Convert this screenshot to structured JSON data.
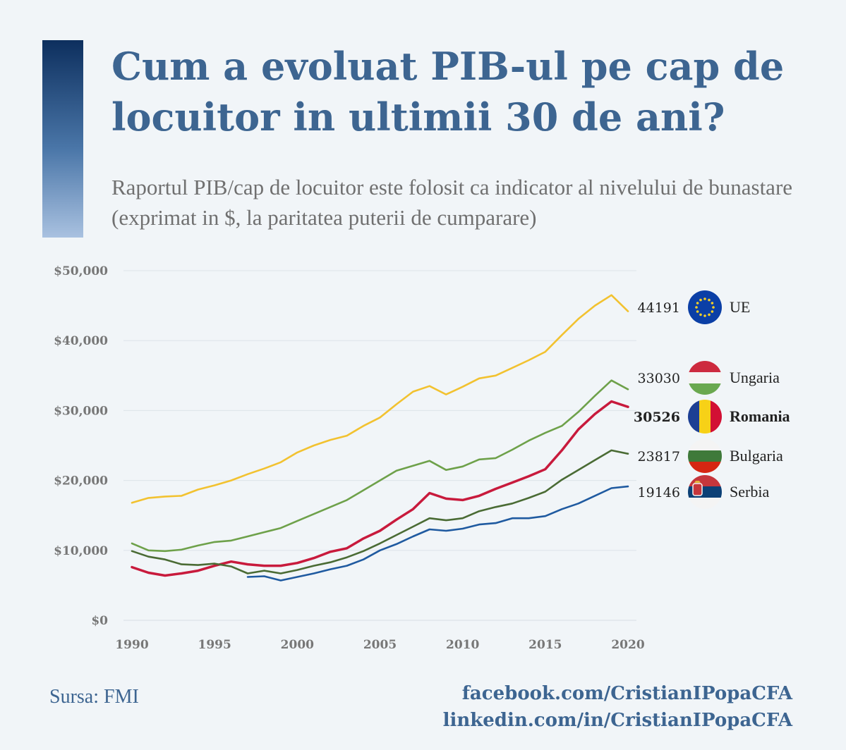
{
  "header": {
    "title": "Cum a evoluat PIB-ul pe cap de locuitor in ultimii 30 de ani?",
    "subtitle": "Raportul PIB/cap de locuitor este folosit ca indicator al nivelului de bunastare (exprimat in $, la paritatea puterii de cumparare)"
  },
  "chart_data": {
    "type": "line",
    "title": "Cum a evoluat PIB-ul pe cap de locuitor in ultimii 30 de ani?",
    "subtitle": "Raportul PIB/cap de locuitor este folosit ca indicator al nivelului de bunastare (exprimat in $, la paritatea puterii de cumparare)",
    "xlabel": "",
    "ylabel": "",
    "xlim": [
      1990,
      2020
    ],
    "ylim": [
      0,
      50000
    ],
    "x_ticks": [
      1990,
      1995,
      2000,
      2005,
      2010,
      2015,
      2020
    ],
    "y_ticks": [
      0,
      10000,
      20000,
      30000,
      40000,
      50000
    ],
    "y_tick_labels": [
      "$0",
      "$10,000",
      "$20,000",
      "$30,000",
      "$40,000",
      "$50,000"
    ],
    "grid": "horizontal",
    "legend_placement": "right",
    "series": [
      {
        "name": "UE",
        "color": "#f2c230",
        "icon": "eu-flag-icon",
        "end_label": "44191",
        "bold": false,
        "points": [
          [
            1990,
            16800
          ],
          [
            1991,
            17500
          ],
          [
            1992,
            17700
          ],
          [
            1993,
            17800
          ],
          [
            1994,
            18700
          ],
          [
            1995,
            19300
          ],
          [
            1996,
            20000
          ],
          [
            1997,
            20900
          ],
          [
            1998,
            21700
          ],
          [
            1999,
            22600
          ],
          [
            2000,
            24000
          ],
          [
            2001,
            25000
          ],
          [
            2002,
            25800
          ],
          [
            2003,
            26400
          ],
          [
            2004,
            27800
          ],
          [
            2005,
            29000
          ],
          [
            2006,
            30900
          ],
          [
            2007,
            32700
          ],
          [
            2008,
            33500
          ],
          [
            2009,
            32300
          ],
          [
            2010,
            33400
          ],
          [
            2011,
            34600
          ],
          [
            2012,
            35000
          ],
          [
            2013,
            36100
          ],
          [
            2014,
            37200
          ],
          [
            2015,
            38400
          ],
          [
            2016,
            40800
          ],
          [
            2017,
            43100
          ],
          [
            2018,
            45000
          ],
          [
            2019,
            46500
          ],
          [
            2020,
            44191
          ]
        ]
      },
      {
        "name": "Ungaria",
        "color": "#6ea14a",
        "icon": "hungary-flag-icon",
        "end_label": "33030",
        "bold": false,
        "points": [
          [
            1990,
            11000
          ],
          [
            1991,
            10000
          ],
          [
            1992,
            9900
          ],
          [
            1993,
            10100
          ],
          [
            1994,
            10700
          ],
          [
            1995,
            11200
          ],
          [
            1996,
            11400
          ],
          [
            1997,
            12000
          ],
          [
            1998,
            12600
          ],
          [
            1999,
            13200
          ],
          [
            2000,
            14200
          ],
          [
            2001,
            15200
          ],
          [
            2002,
            16200
          ],
          [
            2003,
            17200
          ],
          [
            2004,
            18600
          ],
          [
            2005,
            20000
          ],
          [
            2006,
            21400
          ],
          [
            2007,
            22100
          ],
          [
            2008,
            22800
          ],
          [
            2009,
            21500
          ],
          [
            2010,
            22000
          ],
          [
            2011,
            23000
          ],
          [
            2012,
            23200
          ],
          [
            2013,
            24400
          ],
          [
            2014,
            25700
          ],
          [
            2015,
            26800
          ],
          [
            2016,
            27800
          ],
          [
            2017,
            29800
          ],
          [
            2018,
            32100
          ],
          [
            2019,
            34300
          ],
          [
            2020,
            33030
          ]
        ]
      },
      {
        "name": "Romania",
        "color": "#c81a3c",
        "icon": "romania-flag-icon",
        "end_label": "30526",
        "bold": true,
        "points": [
          [
            1990,
            7600
          ],
          [
            1991,
            6800
          ],
          [
            1992,
            6400
          ],
          [
            1993,
            6700
          ],
          [
            1994,
            7100
          ],
          [
            1995,
            7800
          ],
          [
            1996,
            8400
          ],
          [
            1997,
            8000
          ],
          [
            1998,
            7800
          ],
          [
            1999,
            7800
          ],
          [
            2000,
            8200
          ],
          [
            2001,
            8900
          ],
          [
            2002,
            9800
          ],
          [
            2003,
            10300
          ],
          [
            2004,
            11700
          ],
          [
            2005,
            12800
          ],
          [
            2006,
            14400
          ],
          [
            2007,
            15900
          ],
          [
            2008,
            18200
          ],
          [
            2009,
            17400
          ],
          [
            2010,
            17200
          ],
          [
            2011,
            17800
          ],
          [
            2012,
            18800
          ],
          [
            2013,
            19700
          ],
          [
            2014,
            20600
          ],
          [
            2015,
            21600
          ],
          [
            2016,
            24300
          ],
          [
            2017,
            27300
          ],
          [
            2018,
            29500
          ],
          [
            2019,
            31300
          ],
          [
            2020,
            30526
          ]
        ]
      },
      {
        "name": "Bulgaria",
        "color": "#4a6b34",
        "icon": "bulgaria-flag-icon",
        "end_label": "23817",
        "bold": false,
        "points": [
          [
            1990,
            9900
          ],
          [
            1991,
            9100
          ],
          [
            1992,
            8700
          ],
          [
            1993,
            8000
          ],
          [
            1994,
            7900
          ],
          [
            1995,
            8100
          ],
          [
            1996,
            7700
          ],
          [
            1997,
            6700
          ],
          [
            1998,
            7100
          ],
          [
            1999,
            6700
          ],
          [
            2000,
            7200
          ],
          [
            2001,
            7800
          ],
          [
            2002,
            8300
          ],
          [
            2003,
            9000
          ],
          [
            2004,
            9900
          ],
          [
            2005,
            11000
          ],
          [
            2006,
            12200
          ],
          [
            2007,
            13400
          ],
          [
            2008,
            14600
          ],
          [
            2009,
            14300
          ],
          [
            2010,
            14600
          ],
          [
            2011,
            15600
          ],
          [
            2012,
            16200
          ],
          [
            2013,
            16700
          ],
          [
            2014,
            17500
          ],
          [
            2015,
            18400
          ],
          [
            2016,
            20100
          ],
          [
            2017,
            21500
          ],
          [
            2018,
            22900
          ],
          [
            2019,
            24300
          ],
          [
            2020,
            23817
          ]
        ]
      },
      {
        "name": "Serbia",
        "color": "#1f5aa0",
        "icon": "serbia-flag-icon",
        "end_label": "19146",
        "bold": false,
        "points": [
          [
            1997,
            6200
          ],
          [
            1998,
            6300
          ],
          [
            1999,
            5700
          ],
          [
            2000,
            6200
          ],
          [
            2001,
            6700
          ],
          [
            2002,
            7300
          ],
          [
            2003,
            7800
          ],
          [
            2004,
            8700
          ],
          [
            2005,
            10000
          ],
          [
            2006,
            10900
          ],
          [
            2007,
            12000
          ],
          [
            2008,
            13000
          ],
          [
            2009,
            12800
          ],
          [
            2010,
            13100
          ],
          [
            2011,
            13700
          ],
          [
            2012,
            13900
          ],
          [
            2013,
            14600
          ],
          [
            2014,
            14600
          ],
          [
            2015,
            14900
          ],
          [
            2016,
            15900
          ],
          [
            2017,
            16700
          ],
          [
            2018,
            17800
          ],
          [
            2019,
            18900
          ],
          [
            2020,
            19146
          ]
        ]
      }
    ]
  },
  "footer": {
    "source": "Sursa: FMI",
    "link_facebook": "facebook.com/CristianIPopaCFA",
    "link_linkedin": "linkedin.com/in/CristianIPopaCFA"
  }
}
